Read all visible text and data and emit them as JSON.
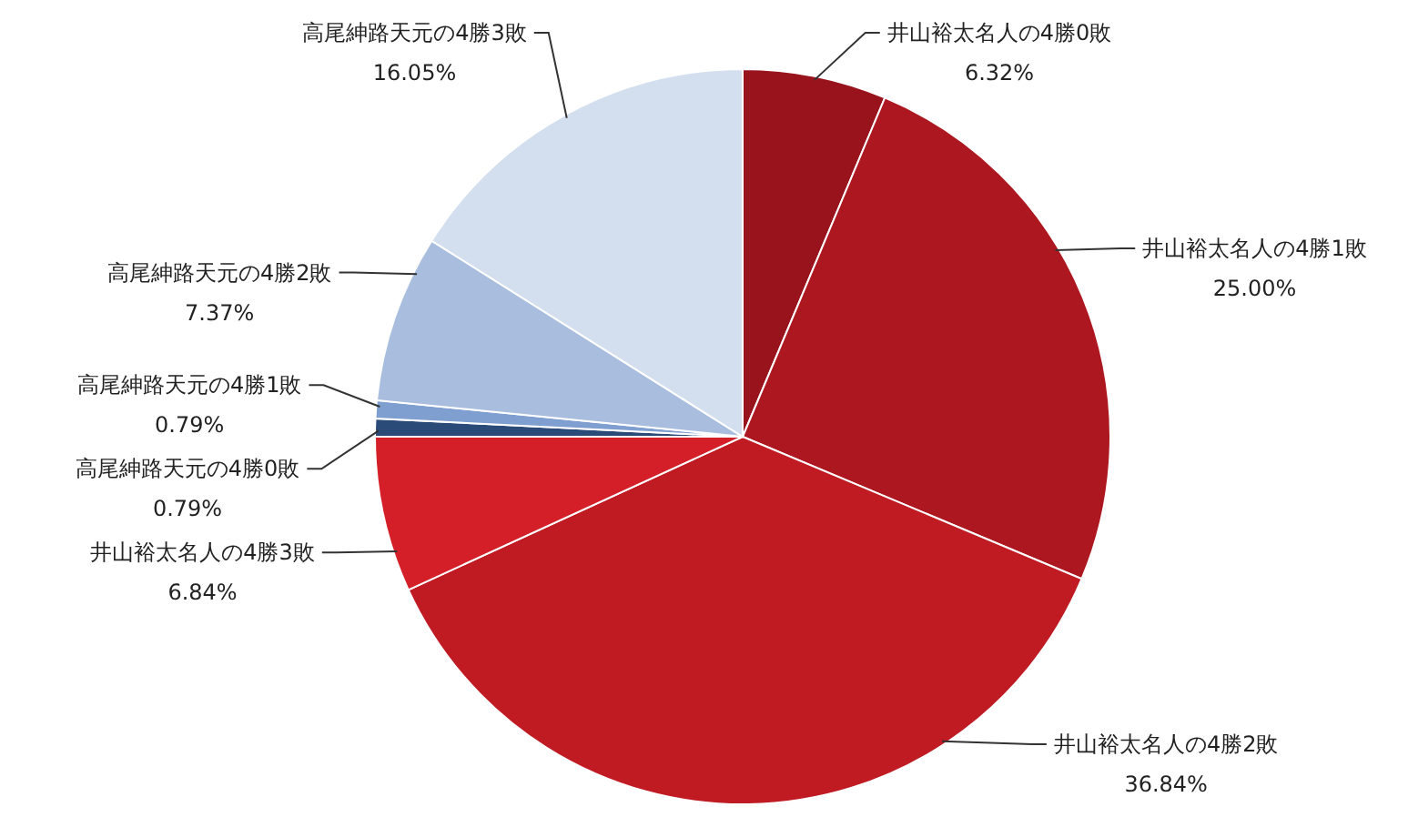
{
  "chart_data": {
    "type": "pie",
    "categories": [
      "井山裕太名人の4勝0敗",
      "井山裕太名人の4勝1敗",
      "井山裕太名人の4勝2敗",
      "井山裕太名人の4勝3敗",
      "高尾紳路天元の4勝0敗",
      "高尾紳路天元の4勝1敗",
      "高尾紳路天元の4勝2敗",
      "高尾紳路天元の4勝3敗"
    ],
    "values": [
      6.32,
      25.0,
      36.84,
      6.84,
      0.79,
      0.79,
      7.37,
      16.05
    ],
    "value_labels": [
      "6.32%",
      "25.00%",
      "36.84%",
      "6.84%",
      "0.79%",
      "0.79%",
      "7.37%",
      "16.05%"
    ],
    "colors": [
      "#98131b",
      "#ad1820",
      "#c01a23",
      "#d41f28",
      "#2a4a78",
      "#7f9fd0",
      "#a9bede",
      "#d3dfef"
    ]
  }
}
